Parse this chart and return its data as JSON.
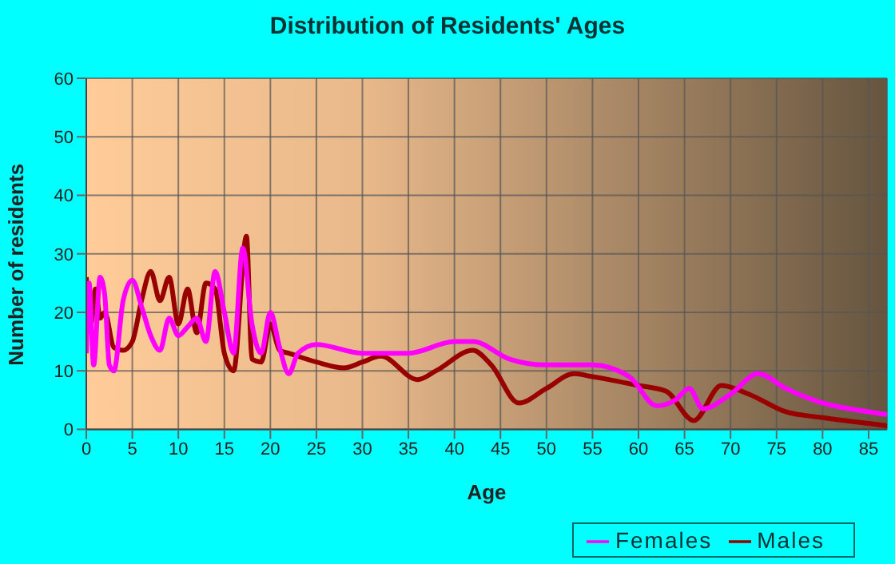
{
  "chart_data": {
    "type": "line",
    "title": "Distribution of Residents' Ages",
    "xlabel": "Age",
    "ylabel": "Number of residents",
    "xlim": [
      0,
      87
    ],
    "xticks": [
      0,
      5,
      10,
      15,
      20,
      25,
      30,
      35,
      40,
      45,
      50,
      55,
      60,
      65,
      70,
      75,
      80,
      85
    ],
    "ylim": [
      0,
      60
    ],
    "yticks": [
      0,
      10,
      20,
      30,
      40,
      50,
      60
    ],
    "grid": true,
    "legend": "bottom",
    "marker": "none",
    "line_style": "solid",
    "series": [
      {
        "name": "Males",
        "color": "#990000",
        "x": [
          0,
          0.5,
          1,
          1.5,
          2,
          3,
          4,
          5,
          6,
          7,
          8,
          9,
          10,
          11,
          12,
          13,
          14,
          15,
          16,
          17.4,
          18,
          19,
          20,
          21,
          22,
          25,
          28,
          30,
          32,
          36,
          38,
          42,
          44,
          47,
          50,
          53,
          55,
          60,
          63,
          66,
          69,
          72,
          76,
          80,
          85,
          87
        ],
        "values": [
          26,
          18,
          24,
          19,
          20,
          14,
          13.5,
          15,
          22,
          27,
          22,
          26,
          18,
          24,
          16.5,
          25,
          24,
          13,
          10,
          33,
          12,
          11.5,
          18,
          13.5,
          13,
          11.5,
          10.5,
          11.5,
          12.5,
          8.5,
          10,
          13.5,
          11,
          4.5,
          7,
          9.5,
          9,
          7.5,
          6.5,
          1.5,
          7.5,
          6,
          3,
          2,
          1,
          0.6
        ]
      },
      {
        "name": "Females",
        "color": "#ff00ff",
        "x": [
          0,
          0.3,
          0.8,
          1.5,
          2,
          2.5,
          3,
          4,
          5,
          6,
          7,
          8,
          9,
          10,
          11,
          12,
          13,
          14,
          15,
          16,
          17,
          18,
          19,
          20,
          21,
          22,
          23,
          25,
          30,
          35,
          40,
          42,
          46,
          50,
          55,
          59,
          62,
          64,
          65.5,
          67,
          70,
          73,
          76,
          80,
          85,
          87
        ],
        "values": [
          13,
          25,
          11,
          26,
          23,
          11,
          10,
          22,
          25.5,
          21,
          16,
          13.5,
          19,
          16,
          17.5,
          19,
          15,
          27,
          20,
          13,
          31,
          18,
          13,
          20,
          14,
          9.5,
          13,
          14.5,
          13,
          13,
          15,
          15,
          12,
          11,
          11,
          9,
          4,
          5,
          7,
          3.5,
          6,
          9.5,
          7,
          4.5,
          3,
          2.5
        ]
      }
    ]
  }
}
